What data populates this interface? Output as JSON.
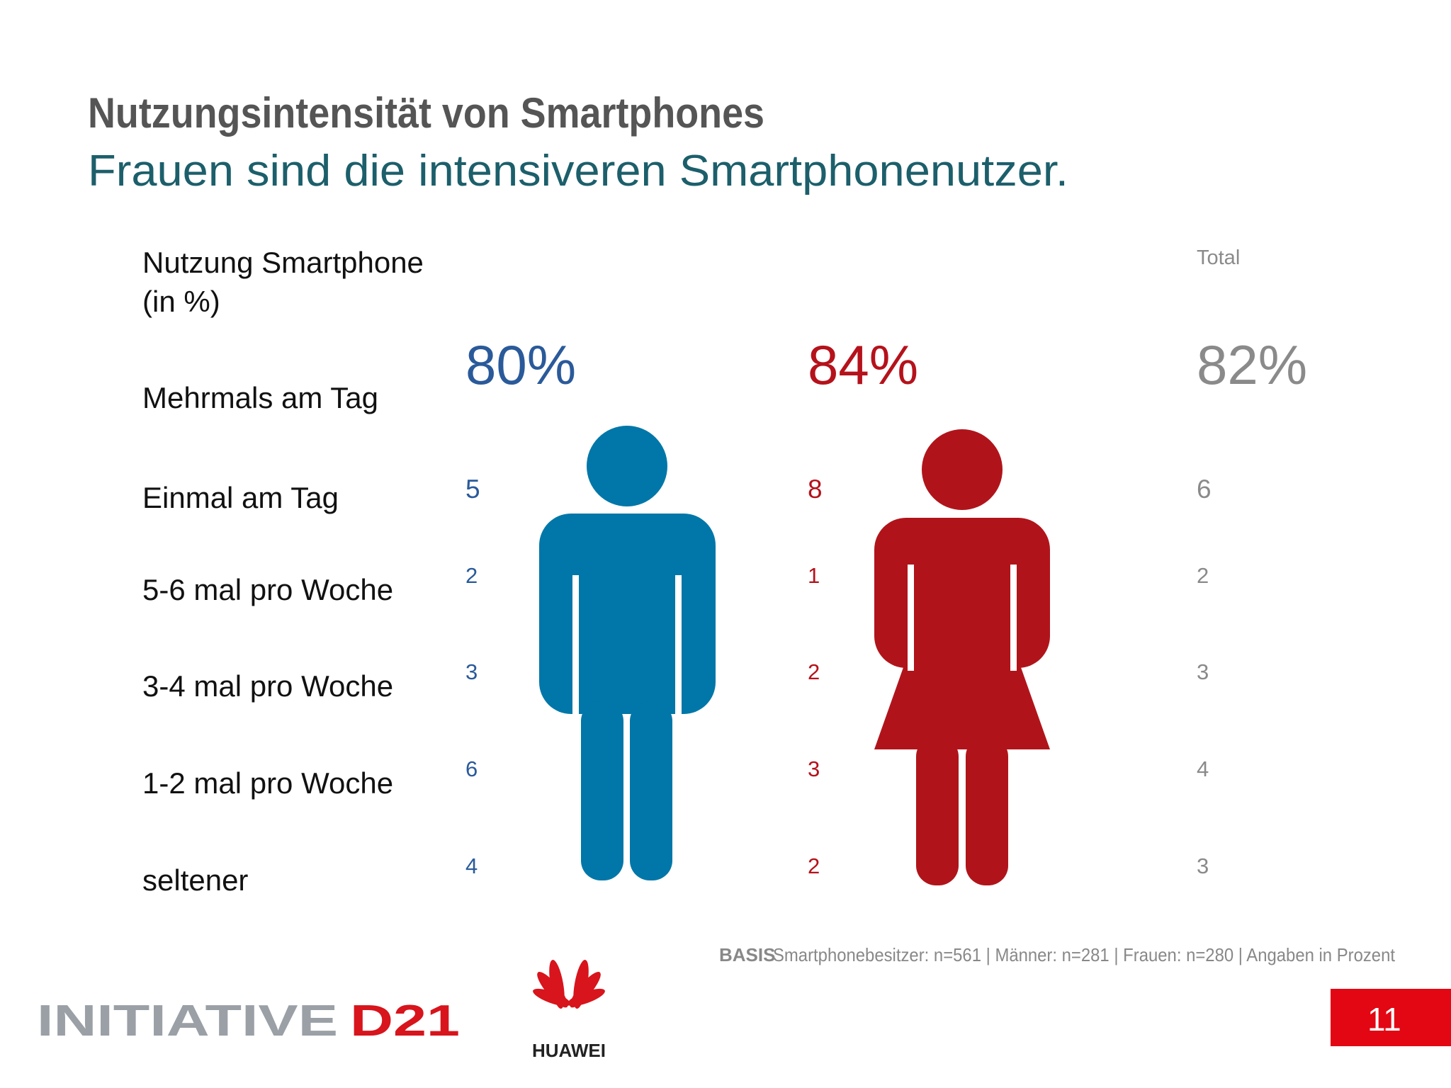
{
  "header": {
    "title": "Nutzungsintensität von Smartphones",
    "subtitle": "Frauen sind die intensiveren Smartphonenutzer."
  },
  "table": {
    "heading": [
      "Nutzung Smartphone",
      "(in %)"
    ],
    "total_label": "Total",
    "rows": [
      {
        "label": "Mehrmals am Tag",
        "men": "80%",
        "women": "84%",
        "total": "82%"
      },
      {
        "label": "Einmal am Tag",
        "men": "5",
        "women": "8",
        "total": "6"
      },
      {
        "label": "5-6 mal pro Woche",
        "men": "2",
        "women": "1",
        "total": "2"
      },
      {
        "label": "3-4 mal pro Woche",
        "men": "3",
        "women": "2",
        "total": "3"
      },
      {
        "label": "1-2 mal pro Woche",
        "men": "6",
        "women": "3",
        "total": "4"
      },
      {
        "label": "seltener",
        "men": "4",
        "women": "2",
        "total": "3"
      }
    ]
  },
  "footer": {
    "basis_label": "BASIS",
    "basis": "Smartphonebesitzer: n=561 | Männer: n=281 | Frauen: n=280 | Angaben in Prozent",
    "logo_initiative": "INITIATIVE",
    "logo_d21": "D21",
    "logo_huawei": "HUAWEI",
    "page": "11"
  }
}
